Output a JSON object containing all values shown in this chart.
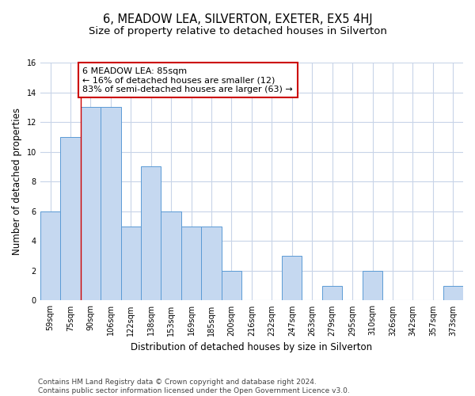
{
  "title": "6, MEADOW LEA, SILVERTON, EXETER, EX5 4HJ",
  "subtitle": "Size of property relative to detached houses in Silverton",
  "xlabel": "Distribution of detached houses by size in Silverton",
  "ylabel": "Number of detached properties",
  "categories": [
    "59sqm",
    "75sqm",
    "90sqm",
    "106sqm",
    "122sqm",
    "138sqm",
    "153sqm",
    "169sqm",
    "185sqm",
    "200sqm",
    "216sqm",
    "232sqm",
    "247sqm",
    "263sqm",
    "279sqm",
    "295sqm",
    "310sqm",
    "326sqm",
    "342sqm",
    "357sqm",
    "373sqm"
  ],
  "values": [
    6,
    11,
    13,
    13,
    5,
    9,
    6,
    5,
    5,
    2,
    0,
    0,
    3,
    0,
    1,
    0,
    2,
    0,
    0,
    0,
    1
  ],
  "bar_color": "#c5d8f0",
  "bar_edge_color": "#5b9bd5",
  "red_line_x": 1.5,
  "annotation_text": "6 MEADOW LEA: 85sqm\n← 16% of detached houses are smaller (12)\n83% of semi-detached houses are larger (63) →",
  "annotation_box_color": "#ffffff",
  "annotation_box_edge_color": "#cc0000",
  "ylim": [
    0,
    16
  ],
  "yticks": [
    0,
    2,
    4,
    6,
    8,
    10,
    12,
    14,
    16
  ],
  "footer": "Contains HM Land Registry data © Crown copyright and database right 2024.\nContains public sector information licensed under the Open Government Licence v3.0.",
  "bg_color": "#ffffff",
  "grid_color": "#c8d4e8",
  "title_fontsize": 10.5,
  "subtitle_fontsize": 9.5,
  "tick_fontsize": 7,
  "label_fontsize": 8.5,
  "annotation_fontsize": 8,
  "footer_fontsize": 6.5
}
